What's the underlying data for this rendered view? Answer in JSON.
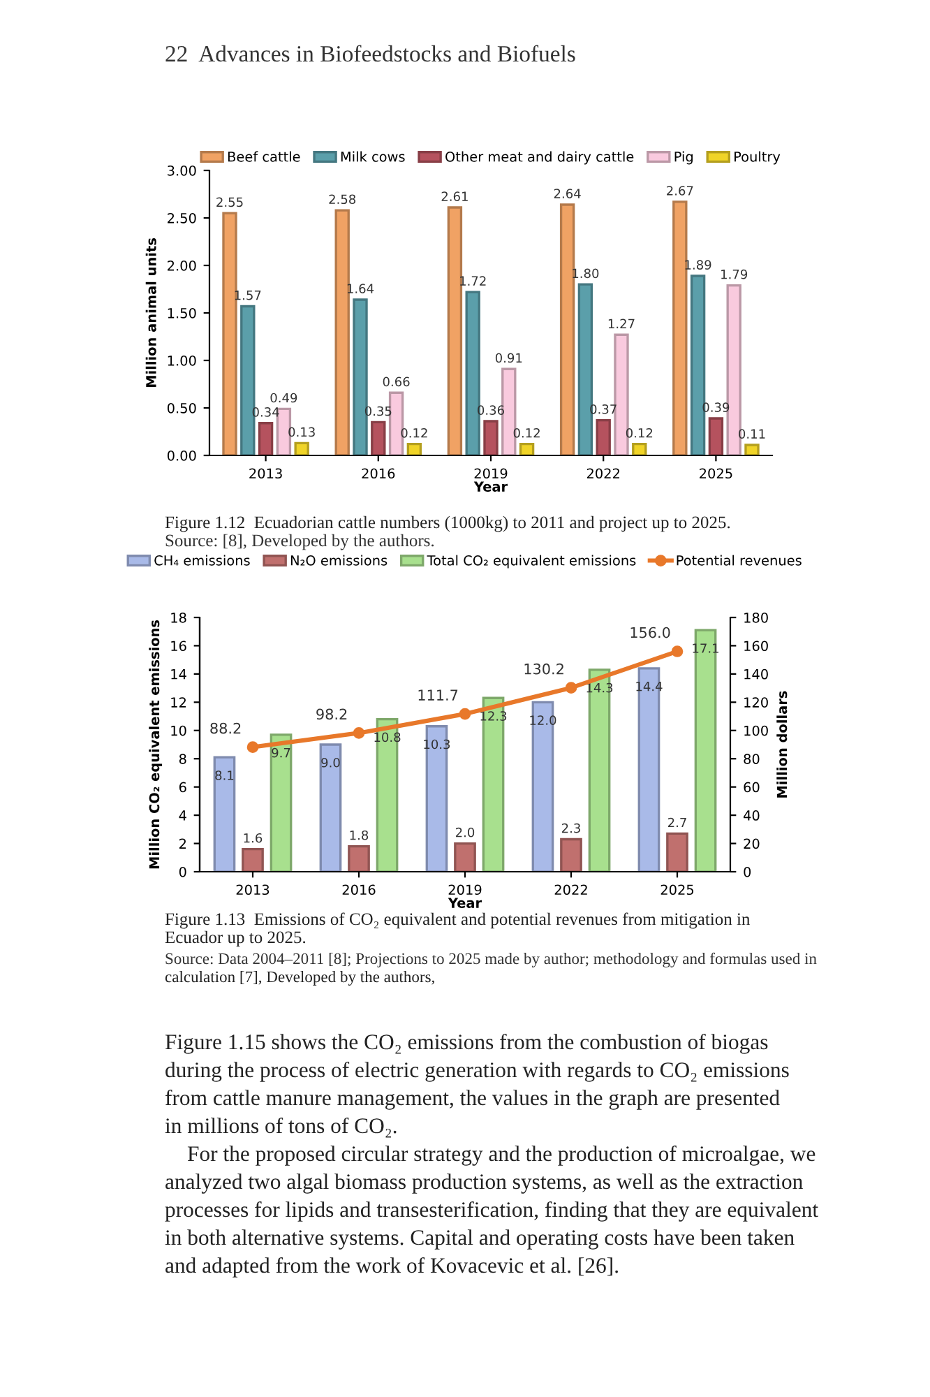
{
  "chart_data": [
    {
      "type": "bar",
      "xlabel": "Year",
      "ylabel": "Million animal units",
      "categories": [
        "2013",
        "2016",
        "2019",
        "2022",
        "2025"
      ],
      "series": [
        {
          "name": "Beef cattle",
          "color": "#f0a264",
          "values": [
            2.55,
            2.58,
            2.61,
            2.64,
            2.67
          ],
          "value_labels": [
            "2.55",
            "2.58",
            "2.61",
            "2.64",
            "2.67"
          ]
        },
        {
          "name": "Milk cows",
          "color": "#5b9faa",
          "values": [
            1.57,
            1.64,
            1.72,
            1.8,
            1.89
          ],
          "value_labels": [
            "1.57",
            "1.64",
            "1.72",
            "1.80",
            "1.89"
          ]
        },
        {
          "name": "Other meat and dairy cattle",
          "color": "#b5525e",
          "values": [
            0.34,
            0.35,
            0.36,
            0.37,
            0.39
          ],
          "value_labels": [
            "0.34",
            "0.35",
            "0.36",
            "0.37",
            "0.39"
          ]
        },
        {
          "name": "Pig",
          "color": "#f9cade",
          "values": [
            0.49,
            0.66,
            0.91,
            1.27,
            1.79
          ],
          "value_labels": [
            "0.49",
            "0.66",
            "0.91",
            "1.27",
            "1.79"
          ]
        },
        {
          "name": "Poultry",
          "color": "#f0d428",
          "values": [
            0.13,
            0.12,
            0.12,
            0.12,
            0.11
          ],
          "value_labels": [
            "0.13",
            "0.12",
            "0.12",
            "0.12",
            "0.11"
          ]
        }
      ],
      "ylim": [
        0,
        3
      ],
      "yticks": [
        {
          "value": 0,
          "label": "0.00"
        },
        {
          "value": 0.5,
          "label": "0.50"
        },
        {
          "value": 1,
          "label": "1.00"
        },
        {
          "value": 1.5,
          "label": "1.50"
        },
        {
          "value": 2,
          "label": "2.00"
        },
        {
          "value": 2.5,
          "label": "2.50"
        },
        {
          "value": 3,
          "label": "3.00"
        }
      ],
      "grid": false,
      "legend": "top",
      "annotations": [
        "22  Advances in Biofeedstocks and Biofuels",
        "Figure 1.12  Ecuadorian cattle numbers (1000kg) to 2011 and project up to 2025.",
        "Source: [8], Developed by the authors."
      ]
    },
    {
      "type": "bar",
      "xlabel": "Year",
      "ylabel": "Million CO₂ equivalent emissions",
      "y2label": "Million dollars",
      "categories": [
        "2013",
        "2016",
        "2019",
        "2022",
        "2025"
      ],
      "series": [
        {
          "name": "CH₄ emissions",
          "color": "#a9bae8",
          "values": [
            8.1,
            9.0,
            10.3,
            12.0,
            14.4
          ],
          "value_labels": [
            "8.1",
            "9.0",
            "10.3",
            "12.0",
            "14.4"
          ]
        },
        {
          "name": "N₂O emissions",
          "color": "#c0706e",
          "values": [
            1.6,
            1.8,
            2.0,
            2.3,
            2.7
          ],
          "value_labels": [
            "1.6",
            "1.8",
            "2.0",
            "2.3",
            "2.7"
          ]
        },
        {
          "name": "Total CO₂ equivalent emissions",
          "color": "#a8e08e",
          "values": [
            9.7,
            10.8,
            12.3,
            14.3,
            17.1
          ],
          "value_labels": [
            "9.7",
            "10.8",
            "12.3",
            "14.3",
            "17.1"
          ]
        },
        {
          "name": "Potential revenues",
          "type": "line",
          "axis": "y2",
          "marker": "circle",
          "color": "#e8782a",
          "values": [
            88.2,
            98.2,
            111.7,
            130.2,
            156.0
          ],
          "value_labels": [
            "88.2",
            "98.2",
            "111.7",
            "130.2",
            "156.0"
          ]
        }
      ],
      "ylim": [
        0,
        18
      ],
      "yticks": [
        0,
        2,
        4,
        6,
        8,
        10,
        12,
        14,
        16,
        18
      ],
      "y2lim": [
        0,
        180
      ],
      "y2ticks": [
        0,
        20,
        40,
        60,
        80,
        100,
        120,
        140,
        160,
        180
      ],
      "grid": false,
      "legend": "top",
      "annotations": [
        "Figure 1.13  Emissions of CO₂ equivalent and potential revenues from mitigation in",
        "Ecuador up to 2025.",
        "Source: Data 2004–2011 [8]; Projections to 2025 made by author; methodology and formulas used in",
        "calculation [7], Developed by the authors,",
        "Figure 1.15 shows the CO₂ emissions from the combustion of biogas",
        "during the process of electric generation with regards to CO₂ emissions",
        "from cattle manure management, the values in the graph are presented",
        "in millions of tons of CO₂.",
        "For the proposed circular strategy and the production of microalgae, we",
        "analyzed two algal biomass production systems, as well as the extraction",
        "processes for lipids and transesterification, finding that they are equivalent",
        "in both alternative systems. Capital and operating costs have been taken",
        "and adapted from the work of Kovacevic et al. [26]."
      ]
    }
  ]
}
